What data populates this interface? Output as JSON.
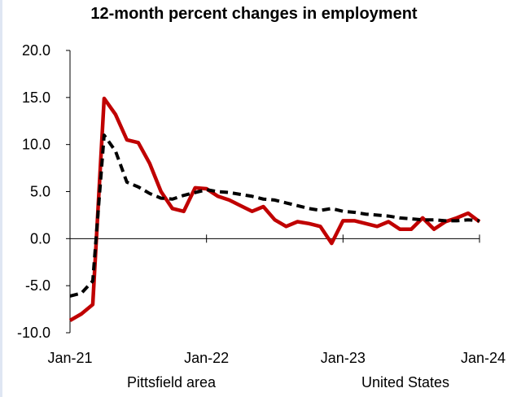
{
  "chart_data": {
    "type": "line",
    "title": "12-month percent changes in employment",
    "xlabel": "",
    "ylabel": "",
    "ylim": [
      -10,
      20
    ],
    "yticks": [
      "20.0",
      "15.0",
      "10.0",
      "5.0",
      "0.0",
      "-5.0",
      "-10.0"
    ],
    "xlim": [
      "Jan-21",
      "Jan-24"
    ],
    "xticks": [
      "Jan-21",
      "Jan-22",
      "Jan-23",
      "Jan-24"
    ],
    "grid": false,
    "legend_position": "bottom",
    "x": [
      "Jan-21",
      "Feb-21",
      "Mar-21",
      "Apr-21",
      "May-21",
      "Jun-21",
      "Jul-21",
      "Aug-21",
      "Sep-21",
      "Oct-21",
      "Nov-21",
      "Dec-21",
      "Jan-22",
      "Feb-22",
      "Mar-22",
      "Apr-22",
      "May-22",
      "Jun-22",
      "Jul-22",
      "Aug-22",
      "Sep-22",
      "Oct-22",
      "Nov-22",
      "Dec-22",
      "Jan-23",
      "Feb-23",
      "Mar-23",
      "Apr-23",
      "May-23",
      "Jun-23",
      "Jul-23",
      "Aug-23",
      "Sep-23",
      "Oct-23",
      "Nov-23",
      "Dec-23",
      "Jan-24"
    ],
    "series": [
      {
        "name": "Pittsfield area",
        "color": "#c00000",
        "style": "solid",
        "values": [
          -8.7,
          -8.0,
          -7.0,
          14.9,
          13.2,
          10.5,
          10.2,
          8.0,
          5.0,
          3.2,
          2.9,
          5.4,
          5.3,
          4.5,
          4.1,
          3.5,
          2.9,
          3.4,
          2.0,
          1.3,
          1.8,
          1.6,
          1.3,
          -0.5,
          1.9,
          1.9,
          1.6,
          1.3,
          1.8,
          1.0,
          1.0,
          2.2,
          1.0,
          1.8,
          2.2,
          2.7,
          1.8
        ]
      },
      {
        "name": "United States",
        "color": "#000000",
        "style": "dashed",
        "values": [
          -6.1,
          -5.8,
          -4.5,
          11.0,
          9.3,
          6.0,
          5.5,
          4.8,
          4.3,
          4.2,
          4.6,
          4.9,
          5.2,
          5.0,
          4.9,
          4.7,
          4.5,
          4.2,
          4.1,
          3.8,
          3.5,
          3.2,
          3.0,
          3.2,
          2.9,
          2.8,
          2.6,
          2.5,
          2.4,
          2.2,
          2.1,
          2.0,
          2.0,
          1.9,
          1.9,
          2.0,
          1.9
        ]
      }
    ]
  }
}
